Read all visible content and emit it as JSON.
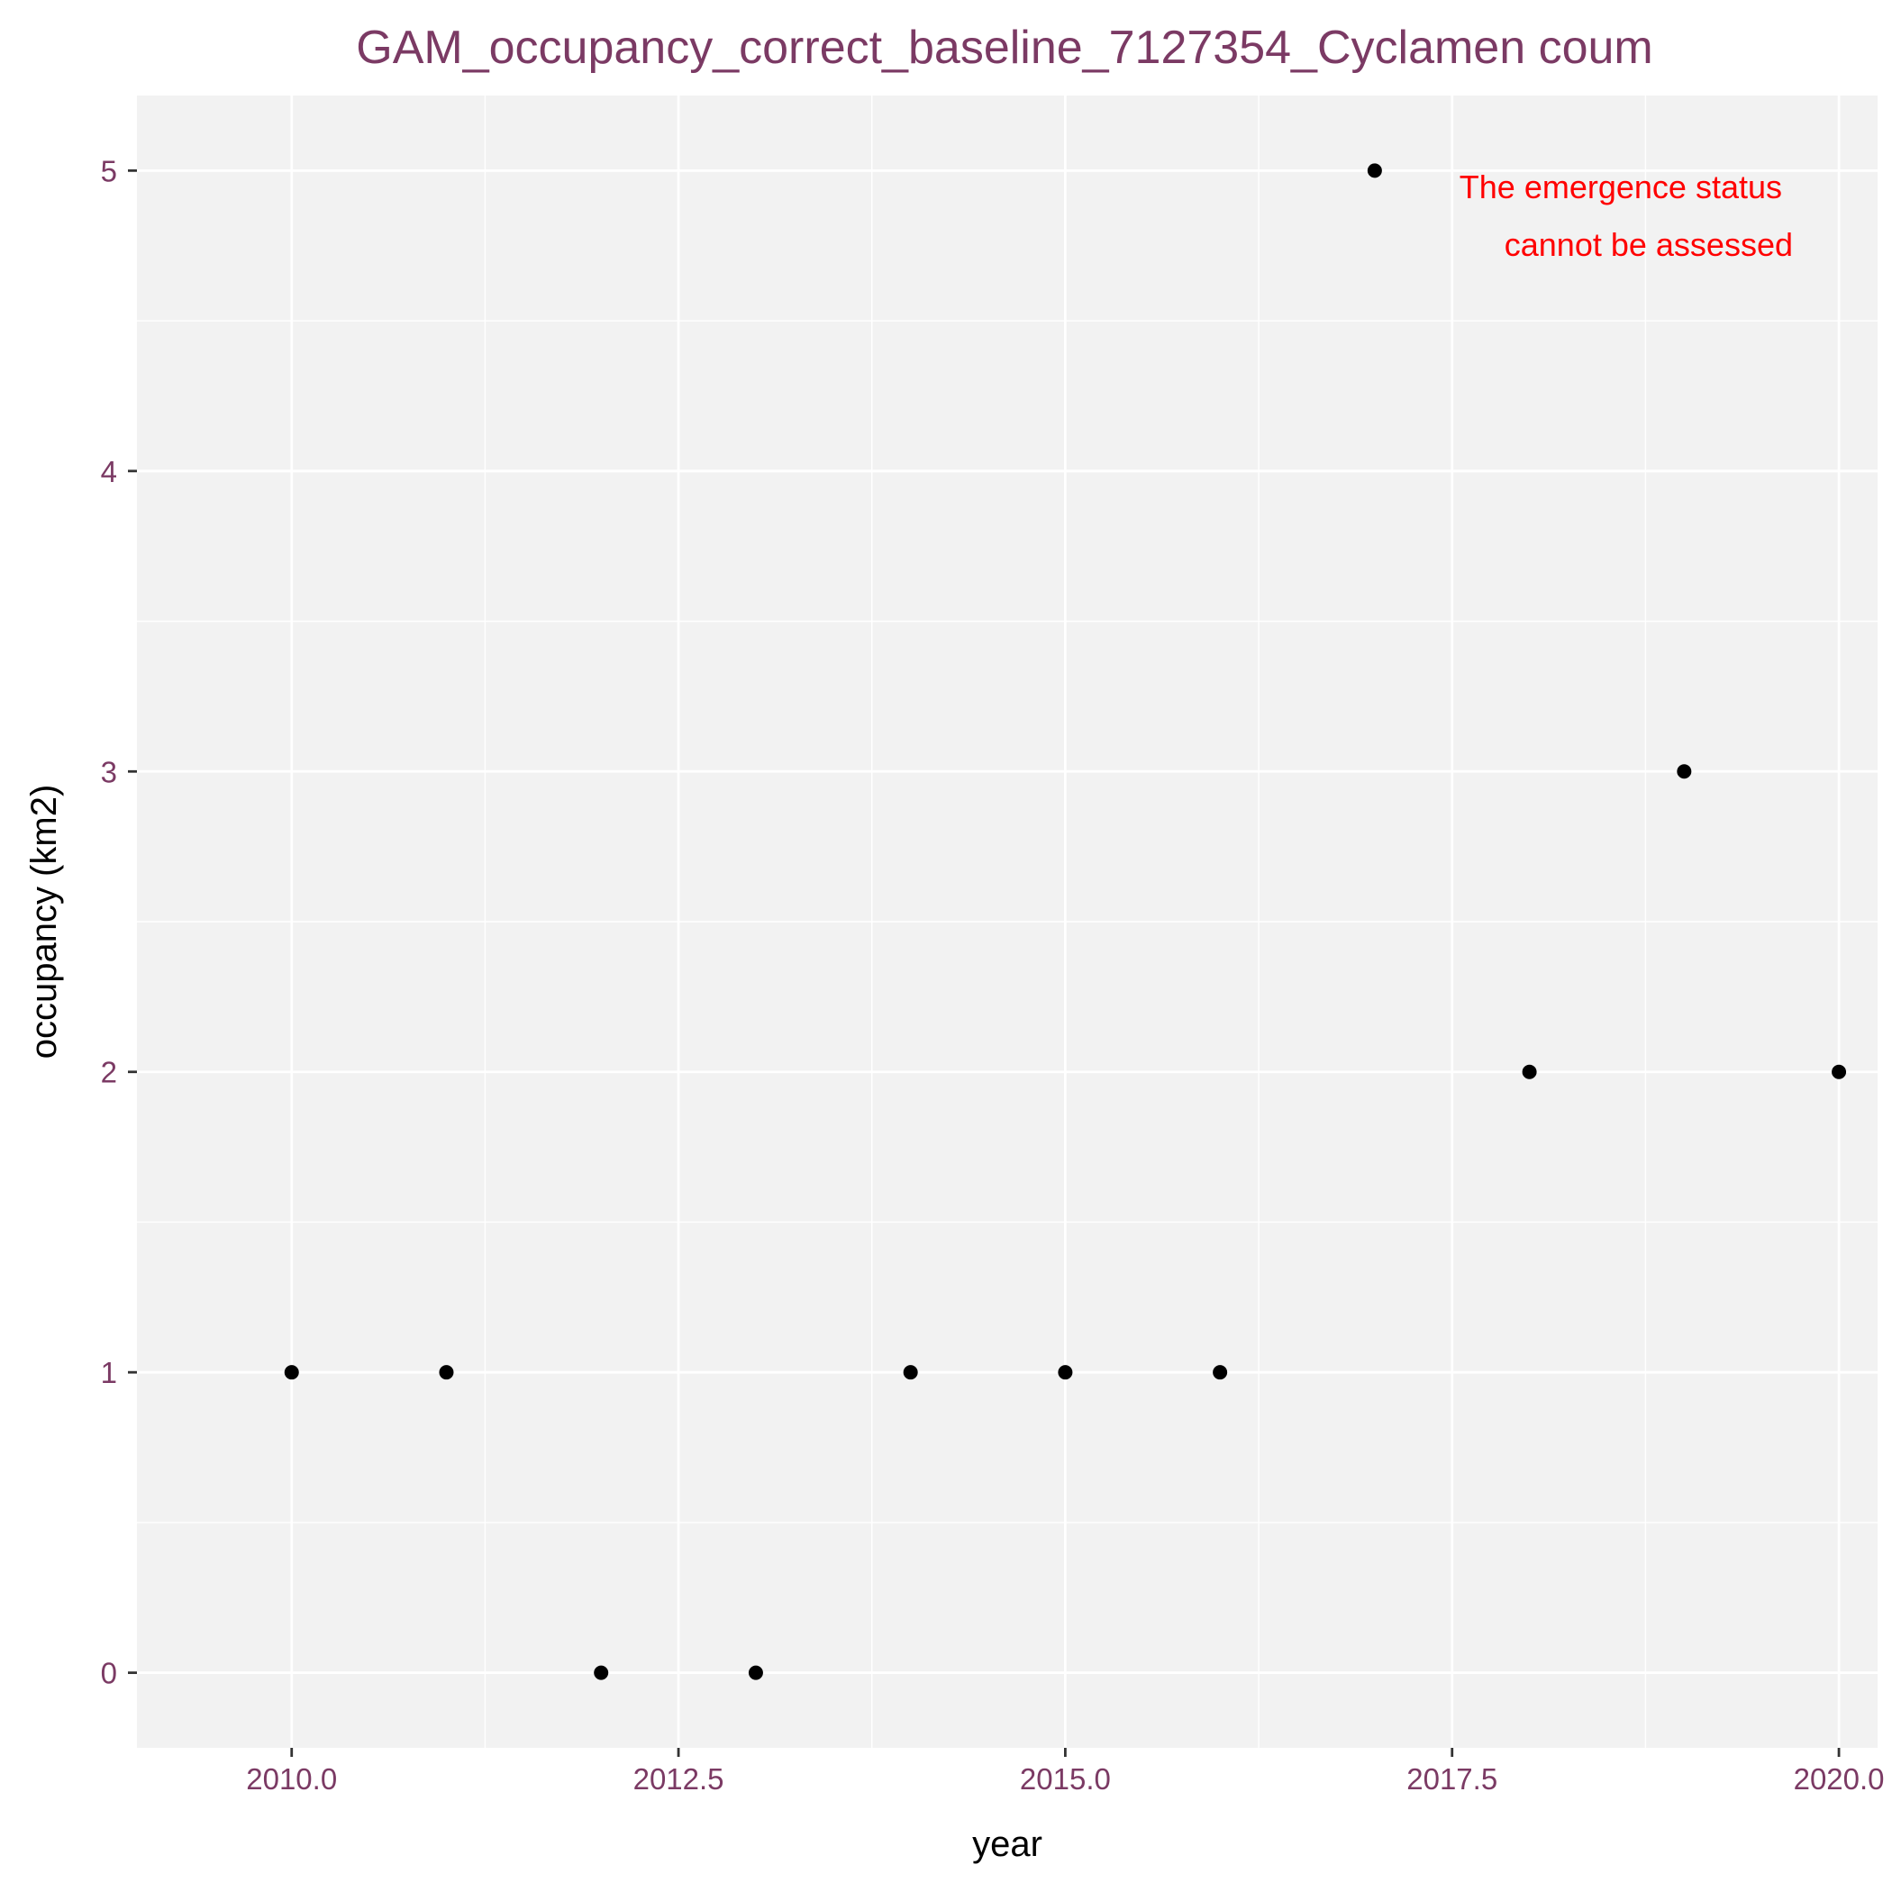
{
  "chart_data": {
    "type": "scatter",
    "title": "GAM_occupancy_correct_baseline_7127354_Cyclamen coum",
    "xlabel": "year",
    "ylabel": "occupancy (km2)",
    "xlim": [
      2009.0,
      2020.25
    ],
    "ylim": [
      -0.25,
      5.25
    ],
    "x_ticks": [
      2010.0,
      2012.5,
      2015.0,
      2017.5,
      2020.0
    ],
    "x_tick_labels": [
      "2010.0",
      "2012.5",
      "2015.0",
      "2017.5",
      "2020.0"
    ],
    "y_ticks": [
      0,
      1,
      2,
      3,
      4,
      5
    ],
    "y_tick_labels": [
      "0",
      "1",
      "2",
      "3",
      "4",
      "5"
    ],
    "grid": true,
    "points": [
      {
        "x": 2010,
        "y": 1
      },
      {
        "x": 2011,
        "y": 1
      },
      {
        "x": 2012,
        "y": 0
      },
      {
        "x": 2013,
        "y": 0
      },
      {
        "x": 2014,
        "y": 1
      },
      {
        "x": 2015,
        "y": 1
      },
      {
        "x": 2016,
        "y": 1
      },
      {
        "x": 2017,
        "y": 5
      },
      {
        "x": 2018,
        "y": 2
      },
      {
        "x": 2019,
        "y": 3
      },
      {
        "x": 2020,
        "y": 2
      }
    ],
    "annotation": {
      "lines": [
        "The emergence status",
        "cannot be assessed"
      ],
      "color": "#ff0000"
    },
    "colors": {
      "panel": "#f2f2f2",
      "grid": "#ffffff",
      "point": "#000000",
      "title": "#7b3a64",
      "tick_label": "#7b3a64"
    }
  }
}
